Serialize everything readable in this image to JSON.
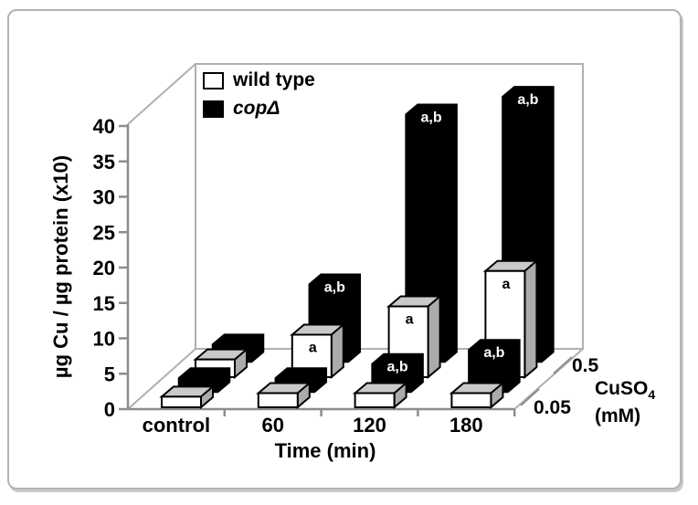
{
  "colors": {
    "frame": "#b0b0b0",
    "axis": "#8c8c8c",
    "bar_outline": "#000000",
    "bar_top_gray": "#c9c9c9",
    "bar_side_gray": "#ababab",
    "annotation_on_black": "#ffffff",
    "annotation_on_white": "#000000",
    "card_border": "#b3b3b3",
    "card_shadow": "#c9c9c9"
  },
  "chart_data": {
    "type": "bar",
    "projection": "3d",
    "title": "",
    "xlabel": "Time (min)",
    "ylabel": "µg Cu / µg protein (x10)",
    "zlabel": "CuSO4 (mM)",
    "zlabel_parts": {
      "base": "CuSO",
      "sub": "4",
      "line2": "(mM)"
    },
    "categories": [
      "control",
      "60",
      "120",
      "180"
    ],
    "y_ticks": [
      0,
      5,
      10,
      15,
      20,
      25,
      30,
      35,
      40
    ],
    "ylim": [
      0,
      40
    ],
    "z_levels": [
      "0.05",
      "0.5"
    ],
    "grid": false,
    "series": [
      {
        "name": "wild type",
        "cuso4_mM": "0.05",
        "fill": "#ffffff",
        "values": [
          1.5,
          2,
          2,
          2
        ],
        "annotations": [
          "",
          "",
          "",
          ""
        ]
      },
      {
        "name": "copΔ",
        "cuso4_mM": "0.05",
        "fill": "#000000",
        "values": [
          2,
          2,
          4,
          6
        ],
        "annotations": [
          "",
          "",
          "a,b",
          "a,b"
        ]
      },
      {
        "name": "wild type",
        "cuso4_mM": "0.5",
        "fill": "#ffffff",
        "values": [
          2.5,
          6,
          10,
          15
        ],
        "annotations": [
          "",
          "a",
          "a",
          "a"
        ]
      },
      {
        "name": "copΔ",
        "cuso4_mM": "0.5",
        "fill": "#000000",
        "values": [
          2.5,
          11,
          35,
          37.5
        ],
        "annotations": [
          "",
          "a,b",
          "a,b",
          "a,b"
        ]
      }
    ],
    "legend": {
      "position": "top-left-inside",
      "items": [
        {
          "label": "wild type",
          "swatch": "#ffffff",
          "italic": false
        },
        {
          "label": "copΔ",
          "swatch": "#000000",
          "italic": true
        }
      ]
    }
  }
}
